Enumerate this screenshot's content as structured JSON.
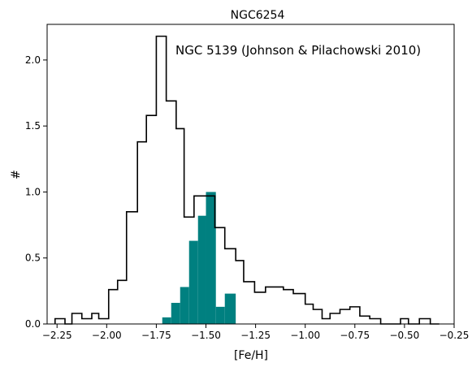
{
  "chart_data": {
    "type": "histogram",
    "title": "NGC6254",
    "xlabel": "[Fe/H]",
    "ylabel": "#",
    "xlim": [
      -2.3,
      -0.25
    ],
    "ylim": [
      0,
      2.27
    ],
    "x_ticks": [
      {
        "value": -2.25,
        "label": "−2.25"
      },
      {
        "value": -2.0,
        "label": "−2.00"
      },
      {
        "value": -1.75,
        "label": "−1.75"
      },
      {
        "value": -1.5,
        "label": "−1.50"
      },
      {
        "value": -1.25,
        "label": "−1.25"
      },
      {
        "value": -1.0,
        "label": "−1.00"
      },
      {
        "value": -0.75,
        "label": "−0.75"
      },
      {
        "value": -0.5,
        "label": "−0.50"
      },
      {
        "value": -0.25,
        "label": "−0.25"
      }
    ],
    "y_ticks": [
      {
        "value": 0.0,
        "label": "0.0"
      },
      {
        "value": 0.5,
        "label": "0.5"
      },
      {
        "value": 1.0,
        "label": "1.0"
      },
      {
        "value": 1.5,
        "label": "1.5"
      },
      {
        "value": 2.0,
        "label": "2.0"
      }
    ],
    "grid": false,
    "annotation": "NGC 5139 (Johnson & Pilachowski 2010)",
    "series": [
      {
        "style": "step-outline",
        "color": "#000000",
        "bin_edges": [
          -2.26,
          -2.21,
          -2.175,
          -2.125,
          -2.075,
          -2.04,
          -1.99,
          -1.945,
          -1.9,
          -1.845,
          -1.8,
          -1.75,
          -1.7,
          -1.65,
          -1.61,
          -1.56,
          -1.51,
          -1.455,
          -1.405,
          -1.35,
          -1.31,
          -1.255,
          -1.2,
          -1.15,
          -1.11,
          -1.06,
          -1.0,
          -0.96,
          -0.915,
          -0.875,
          -0.825,
          -0.775,
          -0.725,
          -0.675,
          -0.62,
          -0.575,
          -0.52,
          -0.48,
          -0.425,
          -0.37,
          -0.325
        ],
        "values": [
          0.04,
          0.0,
          0.08,
          0.04,
          0.08,
          0.04,
          0.26,
          0.33,
          0.85,
          1.38,
          1.58,
          2.18,
          1.69,
          1.48,
          0.81,
          0.97,
          0.97,
          0.73,
          0.57,
          0.48,
          0.32,
          0.24,
          0.28,
          0.28,
          0.26,
          0.23,
          0.15,
          0.11,
          0.04,
          0.08,
          0.11,
          0.13,
          0.06,
          0.04,
          0.0,
          0.0,
          0.04,
          0.0,
          0.04,
          0.0
        ]
      },
      {
        "style": "filled",
        "color": "#008080",
        "bin_edges": [
          -1.72,
          -1.675,
          -1.63,
          -1.585,
          -1.54,
          -1.5,
          -1.45,
          -1.405,
          -1.35
        ],
        "values": [
          0.05,
          0.16,
          0.28,
          0.63,
          0.82,
          1.0,
          0.13,
          0.23
        ]
      }
    ]
  }
}
